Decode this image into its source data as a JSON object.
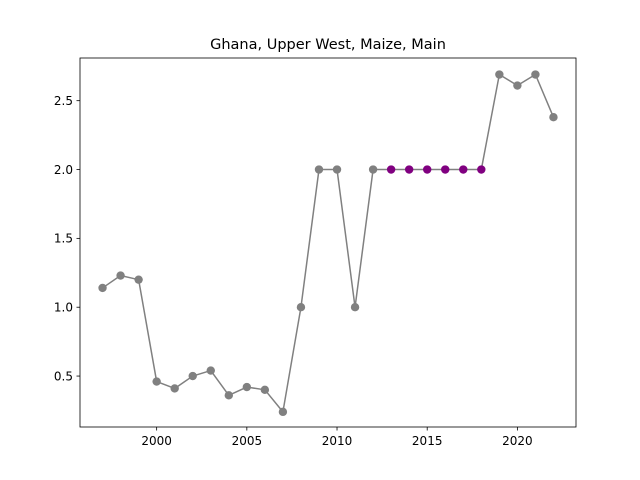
{
  "chart_data": {
    "type": "line",
    "title": "Ghana, Upper West, Maize, Main",
    "xlabel": "",
    "ylabel": "",
    "xlim": [
      1995.75,
      2023.25
    ],
    "ylim": [
      0.13,
      2.81
    ],
    "x_ticks": [
      2000,
      2005,
      2010,
      2015,
      2020
    ],
    "x_tick_labels": [
      "2000",
      "2005",
      "2010",
      "2015",
      "2020"
    ],
    "y_ticks": [
      0.5,
      1.0,
      1.5,
      2.0,
      2.5
    ],
    "y_tick_labels": [
      "0.5",
      "1.0",
      "1.5",
      "2.0",
      "2.5"
    ],
    "grid": false,
    "line_color": "#808080",
    "series": [
      {
        "x": [
          1997,
          1998,
          1999,
          2000,
          2001,
          2002,
          2003,
          2004,
          2005,
          2006,
          2007,
          2008,
          2009,
          2010,
          2011,
          2012,
          2013,
          2014,
          2015,
          2016,
          2017,
          2018,
          2019,
          2020,
          2021,
          2022
        ],
        "y": [
          1.14,
          1.23,
          1.2,
          0.46,
          0.41,
          0.5,
          0.54,
          0.36,
          0.42,
          0.4,
          0.24,
          1.0,
          2.0,
          2.0,
          1.0,
          2.0,
          2.0,
          2.0,
          2.0,
          2.0,
          2.0,
          2.0,
          2.69,
          2.61,
          2.69,
          2.38
        ],
        "marker_colors": [
          "#808080",
          "#808080",
          "#808080",
          "#808080",
          "#808080",
          "#808080",
          "#808080",
          "#808080",
          "#808080",
          "#808080",
          "#808080",
          "#808080",
          "#808080",
          "#808080",
          "#808080",
          "#808080",
          "#800080",
          "#800080",
          "#800080",
          "#800080",
          "#800080",
          "#800080",
          "#808080",
          "#808080",
          "#808080",
          "#808080"
        ]
      }
    ]
  }
}
